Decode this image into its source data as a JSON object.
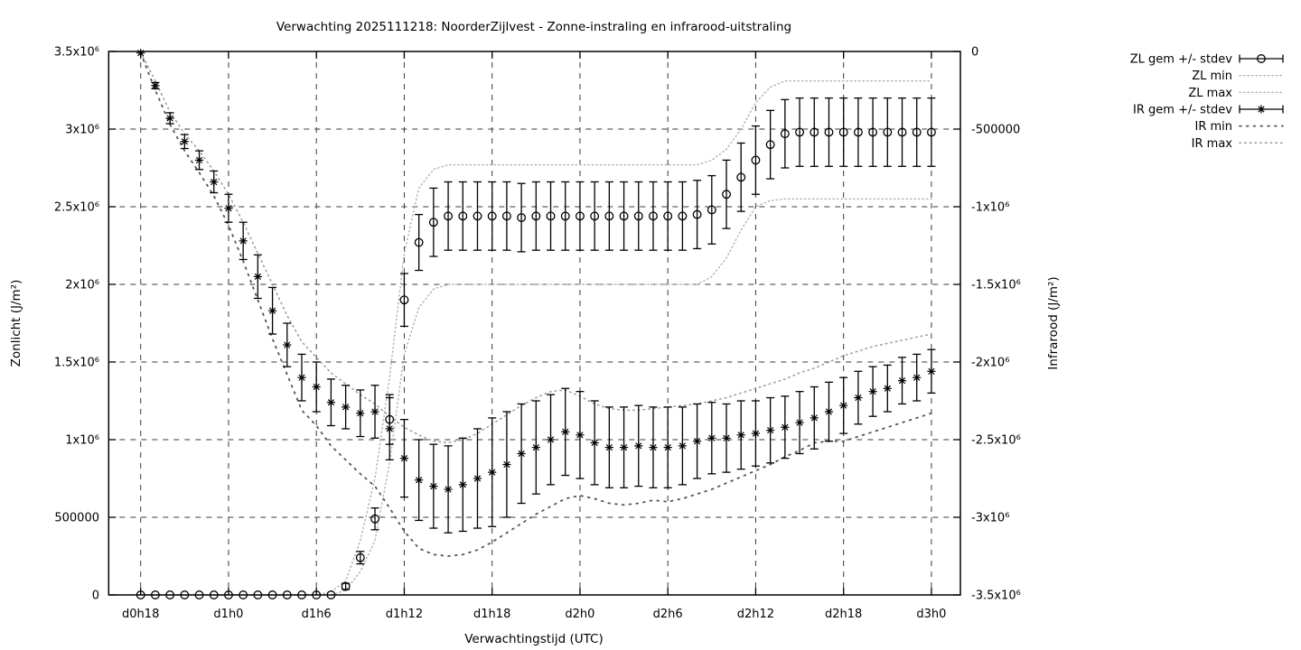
{
  "title": "Verwachting 2025111218: NoorderZijlvest - Zonne-instraling en infrarood-uitstraling",
  "colors": {
    "foreground": "#000000",
    "background": "#ffffff",
    "grid": "#3a3a3a",
    "zl_envelope_dots": "#b0b0b0",
    "ir_max_dots": "#999999",
    "ir_min_dots": "#555555"
  },
  "axes": {
    "x": {
      "label": "Verwachtingstijd (UTC)",
      "ticks": [
        "d0h18",
        "d1h0",
        "d1h6",
        "d1h12",
        "d1h18",
        "d2h0",
        "d2h6",
        "d2h12",
        "d2h18",
        "d3h0"
      ]
    },
    "y_left": {
      "label": "Zonlicht (J/m²)",
      "ticks": [
        "0",
        "500000",
        "1x10⁶",
        "1.5x10⁶",
        "2x10⁶",
        "2.5x10⁶",
        "3x10⁶",
        "3.5x10⁶"
      ]
    },
    "y_right": {
      "label": "Infrarood (J/m²)",
      "ticks": [
        "0",
        "-500000",
        "-1x10⁶",
        "-1.5x10⁶",
        "-2x10⁶",
        "-2.5x10⁶",
        "-3x10⁶",
        "-3.5x10⁶"
      ]
    }
  },
  "legend": {
    "items": [
      {
        "label": "ZL gem +/- stdev",
        "style": "errorbar",
        "marker": "circle"
      },
      {
        "label": "ZL min",
        "style": "dotted-fine"
      },
      {
        "label": "ZL max",
        "style": "dotted-fine"
      },
      {
        "label": "IR gem +/- stdev",
        "style": "errorbar",
        "marker": "asterisk"
      },
      {
        "label": "IR min",
        "style": "dotted-sparse"
      },
      {
        "label": "IR max",
        "style": "dotted-medium"
      }
    ]
  },
  "chart_data": {
    "type": "line",
    "title": "Verwachting 2025111218: NoorderZijlvest - Zonne-instraling en infrarood-uitstraling",
    "xlabel": "Verwachtingstijd (UTC)",
    "ylabel_left": "Zonlicht (J/m²)",
    "ylabel_right": "Infrarood (J/m²)",
    "ylim_left": [
      0,
      3500000
    ],
    "ylim_right": [
      -3500000,
      0
    ],
    "grid": true,
    "legend_position": "outside-top-right",
    "x": [
      "d0h18",
      "d0h19",
      "d0h20",
      "d0h21",
      "d0h22",
      "d0h23",
      "d1h0",
      "d1h1",
      "d1h2",
      "d1h3",
      "d1h4",
      "d1h5",
      "d1h6",
      "d1h7",
      "d1h8",
      "d1h9",
      "d1h10",
      "d1h11",
      "d1h12",
      "d1h13",
      "d1h14",
      "d1h15",
      "d1h16",
      "d1h17",
      "d1h18",
      "d1h19",
      "d1h20",
      "d1h21",
      "d1h22",
      "d1h23",
      "d2h0",
      "d2h1",
      "d2h2",
      "d2h3",
      "d2h4",
      "d2h5",
      "d2h6",
      "d2h7",
      "d2h8",
      "d2h9",
      "d2h10",
      "d2h11",
      "d2h12",
      "d2h13",
      "d2h14",
      "d2h15",
      "d2h16",
      "d2h17",
      "d2h18",
      "d2h19",
      "d2h20",
      "d2h21",
      "d2h22",
      "d2h23",
      "d3h0"
    ],
    "series": [
      {
        "name": "ZL gem",
        "legend": "ZL gem +/- stdev",
        "axis": "left",
        "marker": "circle",
        "values": [
          0,
          0,
          0,
          0,
          0,
          0,
          0,
          0,
          0,
          0,
          0,
          0,
          0,
          0,
          55000,
          240000,
          490000,
          1130000,
          1900000,
          2270000,
          2400000,
          2440000,
          2440000,
          2440000,
          2440000,
          2440000,
          2430000,
          2440000,
          2440000,
          2440000,
          2440000,
          2440000,
          2440000,
          2440000,
          2440000,
          2440000,
          2440000,
          2440000,
          2450000,
          2480000,
          2580000,
          2690000,
          2800000,
          2900000,
          2970000,
          2980000,
          2980000,
          2980000,
          2980000,
          2980000,
          2980000,
          2980000,
          2980000,
          2980000,
          2980000
        ]
      },
      {
        "name": "ZL stdev",
        "axis": "left",
        "role": "stdev",
        "values": [
          0,
          0,
          0,
          0,
          0,
          0,
          0,
          0,
          0,
          0,
          0,
          0,
          0,
          0,
          20000,
          40000,
          70000,
          160000,
          170000,
          180000,
          220000,
          220000,
          220000,
          220000,
          220000,
          220000,
          220000,
          220000,
          220000,
          220000,
          220000,
          220000,
          220000,
          220000,
          220000,
          220000,
          220000,
          220000,
          220000,
          220000,
          220000,
          220000,
          220000,
          220000,
          220000,
          220000,
          220000,
          220000,
          220000,
          220000,
          220000,
          220000,
          220000,
          220000,
          220000
        ]
      },
      {
        "name": "ZL min",
        "axis": "left",
        "style": "dotted-fine",
        "values": [
          0,
          0,
          0,
          0,
          0,
          0,
          0,
          0,
          0,
          0,
          0,
          0,
          0,
          0,
          30000,
          150000,
          350000,
          850000,
          1550000,
          1850000,
          1970000,
          2000000,
          2000000,
          2000000,
          2000000,
          2000000,
          2000000,
          2000000,
          2000000,
          2000000,
          2000000,
          2000000,
          2000000,
          2000000,
          2000000,
          2000000,
          2000000,
          2000000,
          2000000,
          2050000,
          2170000,
          2350000,
          2500000,
          2540000,
          2550000,
          2550000,
          2550000,
          2550000,
          2550000,
          2550000,
          2550000,
          2550000,
          2550000,
          2550000,
          2550000
        ]
      },
      {
        "name": "ZL max",
        "axis": "left",
        "style": "dotted-fine",
        "values": [
          0,
          0,
          0,
          0,
          0,
          0,
          0,
          0,
          0,
          0,
          0,
          0,
          0,
          20000,
          90000,
          350000,
          750000,
          1400000,
          2200000,
          2620000,
          2740000,
          2770000,
          2770000,
          2770000,
          2770000,
          2770000,
          2770000,
          2770000,
          2770000,
          2770000,
          2770000,
          2770000,
          2770000,
          2770000,
          2770000,
          2770000,
          2770000,
          2770000,
          2770000,
          2800000,
          2870000,
          3000000,
          3170000,
          3270000,
          3310000,
          3310000,
          3310000,
          3310000,
          3310000,
          3310000,
          3310000,
          3310000,
          3310000,
          3310000,
          3310000
        ]
      },
      {
        "name": "IR gem",
        "legend": "IR gem +/- stdev",
        "axis": "right",
        "marker": "asterisk",
        "values": [
          -10000,
          -220000,
          -430000,
          -580000,
          -700000,
          -840000,
          -1010000,
          -1220000,
          -1450000,
          -1670000,
          -1890000,
          -2100000,
          -2160000,
          -2260000,
          -2290000,
          -2330000,
          -2320000,
          -2430000,
          -2620000,
          -2760000,
          -2800000,
          -2820000,
          -2790000,
          -2750000,
          -2710000,
          -2660000,
          -2590000,
          -2550000,
          -2500000,
          -2450000,
          -2470000,
          -2520000,
          -2550000,
          -2550000,
          -2540000,
          -2550000,
          -2550000,
          -2540000,
          -2510000,
          -2490000,
          -2490000,
          -2470000,
          -2460000,
          -2440000,
          -2420000,
          -2390000,
          -2360000,
          -2320000,
          -2280000,
          -2230000,
          -2190000,
          -2170000,
          -2120000,
          -2100000,
          -2060000
        ]
      },
      {
        "name": "IR stdev",
        "axis": "right",
        "role": "stdev",
        "values": [
          5000,
          20000,
          35000,
          45000,
          60000,
          70000,
          90000,
          120000,
          140000,
          150000,
          140000,
          150000,
          160000,
          150000,
          140000,
          150000,
          170000,
          200000,
          250000,
          260000,
          270000,
          280000,
          300000,
          320000,
          350000,
          340000,
          320000,
          300000,
          290000,
          280000,
          280000,
          270000,
          260000,
          260000,
          260000,
          260000,
          260000,
          250000,
          240000,
          230000,
          220000,
          220000,
          210000,
          210000,
          200000,
          200000,
          200000,
          190000,
          180000,
          170000,
          160000,
          150000,
          150000,
          150000,
          140000
        ]
      },
      {
        "name": "IR min",
        "axis": "right",
        "style": "dotted-sparse",
        "values": [
          -10000,
          -250000,
          -470000,
          -640000,
          -780000,
          -930000,
          -1120000,
          -1350000,
          -1600000,
          -1850000,
          -2080000,
          -2310000,
          -2410000,
          -2540000,
          -2630000,
          -2720000,
          -2800000,
          -2940000,
          -3090000,
          -3200000,
          -3240000,
          -3250000,
          -3240000,
          -3210000,
          -3160000,
          -3100000,
          -3040000,
          -2980000,
          -2930000,
          -2880000,
          -2860000,
          -2880000,
          -2910000,
          -2920000,
          -2910000,
          -2890000,
          -2900000,
          -2880000,
          -2850000,
          -2820000,
          -2780000,
          -2740000,
          -2700000,
          -2660000,
          -2610000,
          -2570000,
          -2520000,
          -2510000,
          -2510000,
          -2480000,
          -2450000,
          -2420000,
          -2390000,
          -2360000,
          -2330000
        ]
      },
      {
        "name": "IR max",
        "axis": "right",
        "style": "dotted-medium",
        "values": [
          -5000,
          -190000,
          -390000,
          -530000,
          -640000,
          -770000,
          -920000,
          -1100000,
          -1300000,
          -1500000,
          -1700000,
          -1870000,
          -1970000,
          -2070000,
          -2140000,
          -2210000,
          -2270000,
          -2350000,
          -2420000,
          -2470000,
          -2510000,
          -2520000,
          -2500000,
          -2460000,
          -2400000,
          -2340000,
          -2280000,
          -2230000,
          -2190000,
          -2180000,
          -2220000,
          -2270000,
          -2300000,
          -2310000,
          -2310000,
          -2300000,
          -2290000,
          -2280000,
          -2270000,
          -2250000,
          -2230000,
          -2200000,
          -2170000,
          -2140000,
          -2110000,
          -2070000,
          -2040000,
          -2000000,
          -1960000,
          -1930000,
          -1900000,
          -1880000,
          -1860000,
          -1840000,
          -1820000
        ]
      }
    ]
  }
}
